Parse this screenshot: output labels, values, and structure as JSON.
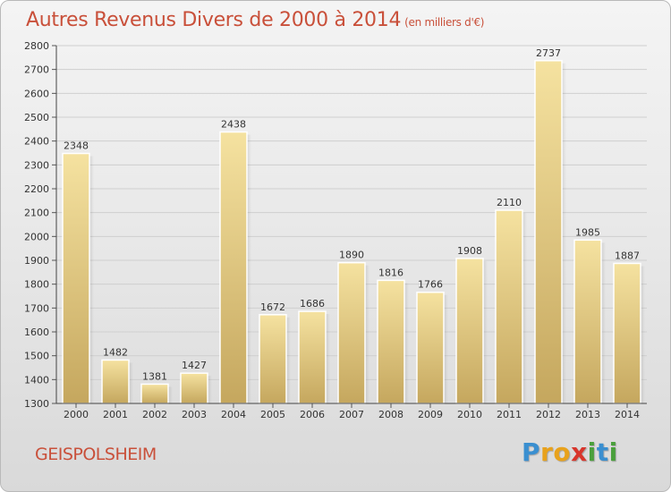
{
  "title": "Autres Revenus Divers de 2000 à 2014",
  "subtitle": "(en milliers d'€)",
  "commune": "GEISPOLSHEIM",
  "brand": {
    "letters": [
      {
        "char": "P",
        "color": "#3a8fd0"
      },
      {
        "char": "r",
        "color": "#e8a21c"
      },
      {
        "char": "o",
        "color": "#e8a21c"
      },
      {
        "char": "x",
        "color": "#d8362c"
      },
      {
        "char": "i",
        "color": "#4aa03c"
      },
      {
        "char": "t",
        "color": "#3a8fd0"
      },
      {
        "char": "i",
        "color": "#4aa03c"
      }
    ]
  },
  "colors": {
    "title": "#c9503a",
    "bar_light": "#f5e2a0",
    "bar_dark": "#c5a75e",
    "grid": "#cfcfcf"
  },
  "chart_data": {
    "type": "bar",
    "title": "Autres Revenus Divers de 2000 à 2014",
    "subtitle": "(en milliers d'€)",
    "xlabel": "",
    "ylabel": "",
    "categories": [
      "2000",
      "2001",
      "2002",
      "2003",
      "2004",
      "2005",
      "2006",
      "2007",
      "2008",
      "2009",
      "2010",
      "2011",
      "2012",
      "2013",
      "2014"
    ],
    "values": [
      2348,
      1482,
      1381,
      1427,
      2438,
      1672,
      1686,
      1890,
      1816,
      1766,
      1908,
      2110,
      2737,
      1985,
      1887
    ],
    "ylim": [
      1300,
      2800
    ],
    "yticks": [
      1300,
      1400,
      1500,
      1600,
      1700,
      1800,
      1900,
      2000,
      2100,
      2200,
      2300,
      2400,
      2500,
      2600,
      2700,
      2800
    ],
    "grid": true,
    "legend": "none"
  }
}
